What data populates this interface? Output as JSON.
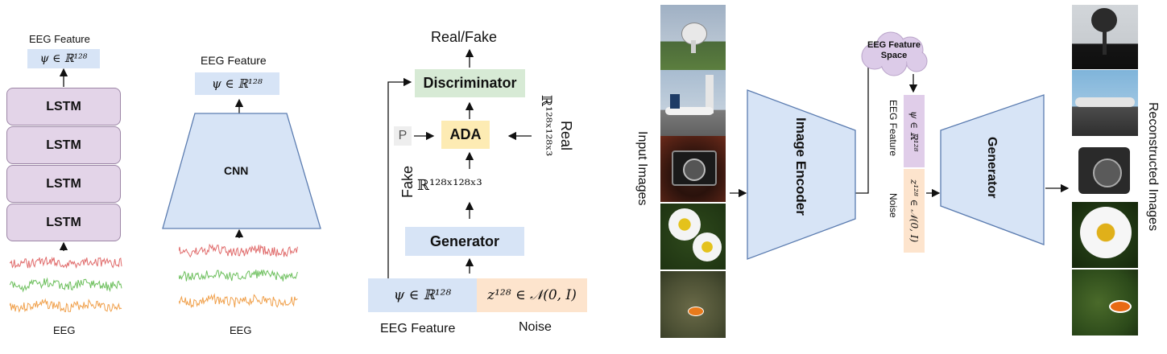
{
  "panel_lstm": {
    "eeg_feature_label": "EEG Feature",
    "feature_formula": "ψ ∈ ℝ¹²⁸",
    "layers": [
      "LSTM",
      "LSTM",
      "LSTM",
      "LSTM"
    ],
    "input_label": "EEG"
  },
  "panel_cnn": {
    "eeg_feature_label": "EEG Feature",
    "feature_formula": "ψ ∈ ℝ¹²⁸",
    "encoder_label": "CNN",
    "input_label": "EEG"
  },
  "panel_gan": {
    "output_label": "Real/Fake",
    "discriminator_label": "Discriminator",
    "ada_label": "ADA",
    "p_label": "P",
    "real_label": "Real",
    "real_space": "ℝ¹²⁸ˣ¹²⁸ˣ³",
    "fake_label": "Fake",
    "fake_space": "ℝ¹²⁸ˣ¹²⁸ˣ³",
    "generator_label": "Generator",
    "feature_formula": "ψ ∈ ℝ¹²⁸",
    "noise_formula": "z¹²⁸ ∈ 𝒩(0, I)",
    "eeg_feature_label": "EEG Feature",
    "noise_label": "Noise"
  },
  "panel_recon": {
    "input_images_label": "Input Images",
    "image_encoder_label": "Image Encoder",
    "feature_space_label": "EEG Feature Space",
    "feature_formula": "ψ ∈ ℝ¹²⁸",
    "eeg_feature_label": "EEG Feature",
    "noise_formula": "z¹²⁸ ∈ 𝒩(0, I)",
    "noise_label": "Noise",
    "generator_label": "Generator",
    "reconstructed_label": "Reconstructed Images"
  },
  "colors": {
    "lstm_fill": "#e3d4e8",
    "blue_fill": "#d7e4f6",
    "green_fill": "#d7ead5",
    "yellow_fill": "#fdebb3",
    "peach_fill": "#fde4cd",
    "cloud_fill": "#dccbe8",
    "eeg_red": "#e06b6b",
    "eeg_green": "#6cbf5c",
    "eeg_orange": "#f0a04b"
  }
}
